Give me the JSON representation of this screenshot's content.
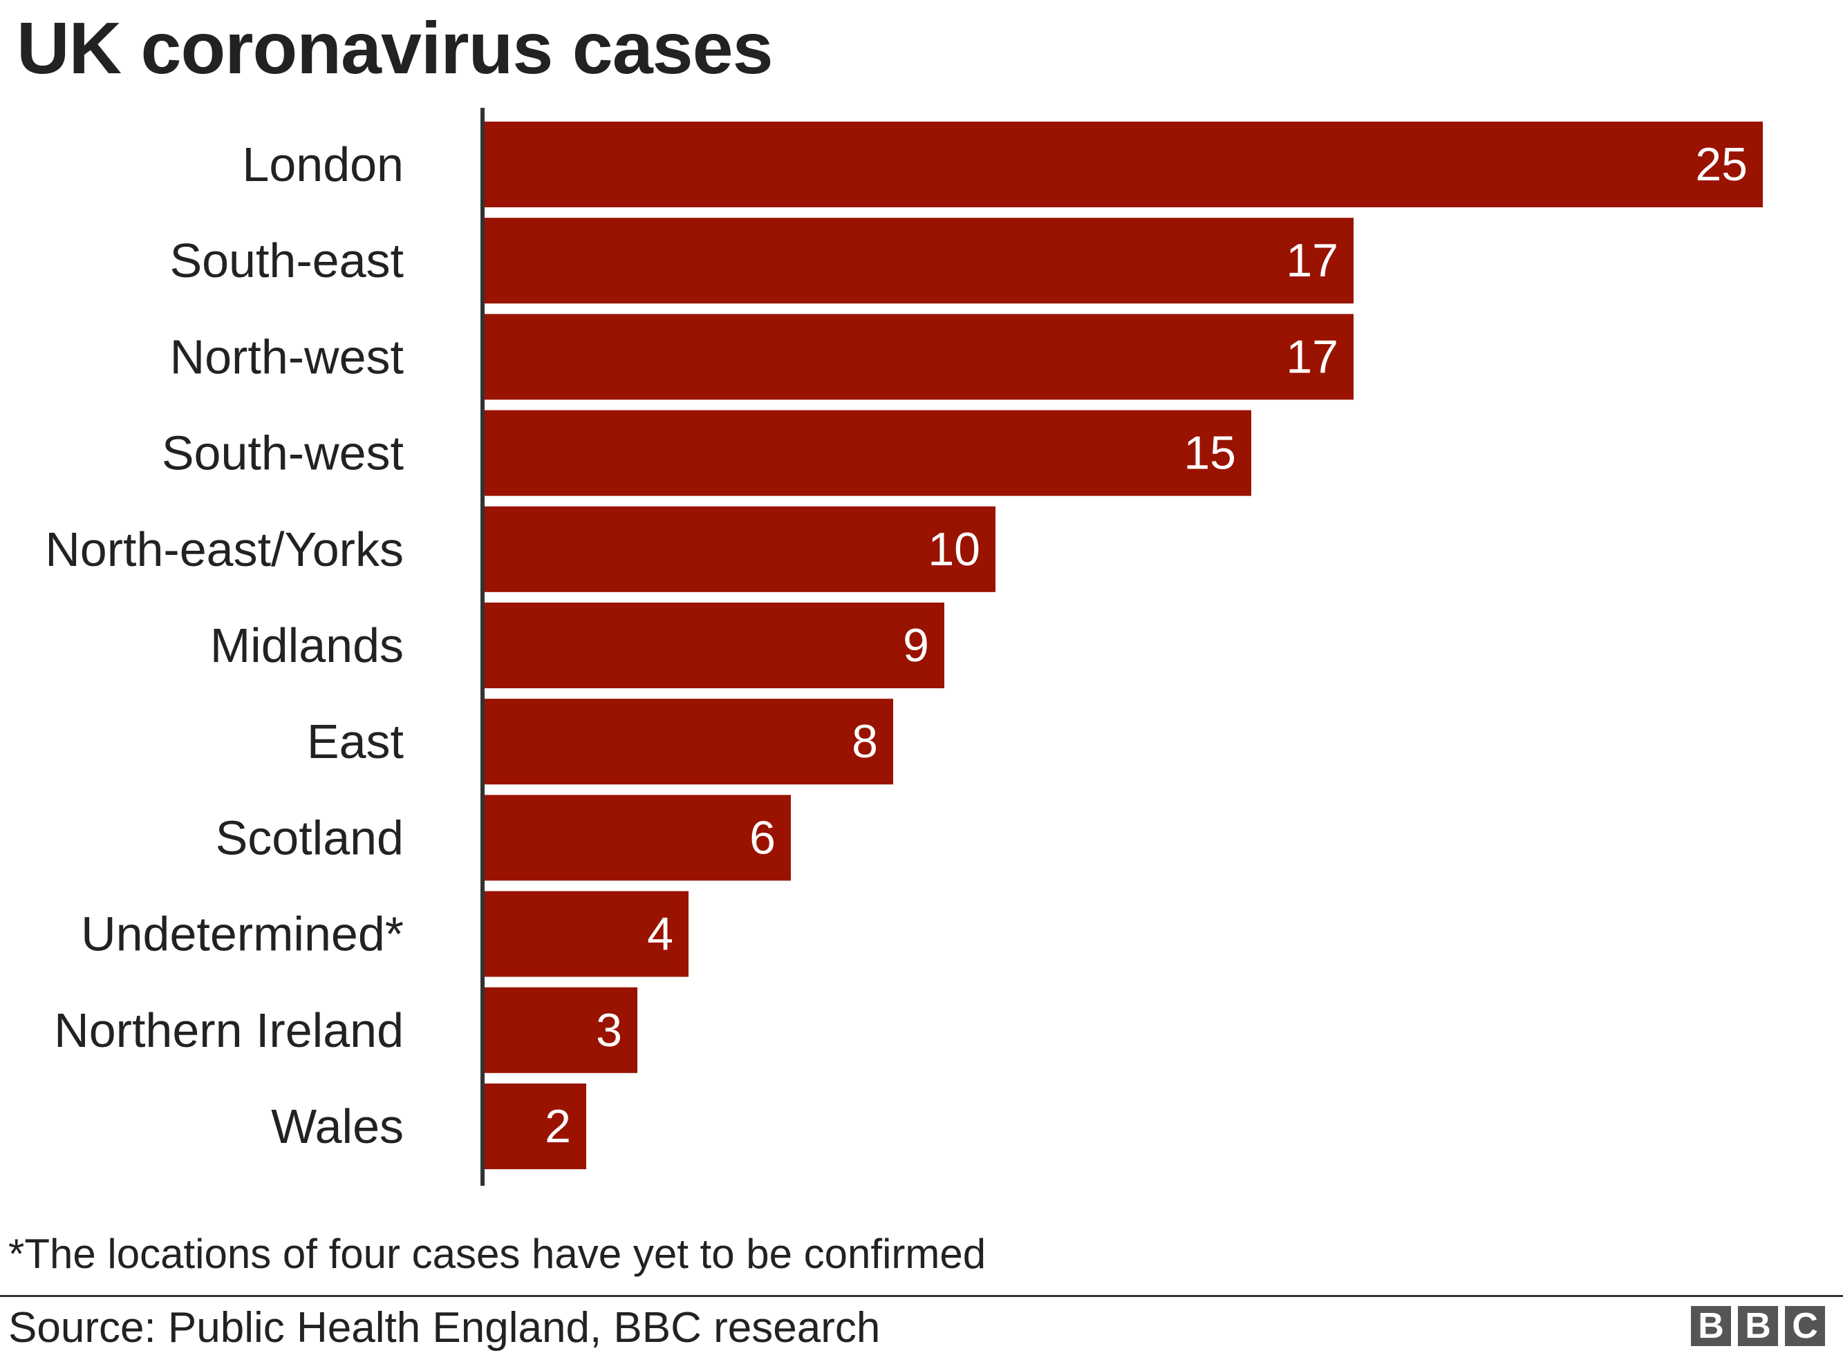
{
  "title": "UK coronavirus cases",
  "footnote": "*The locations of four cases have yet to be confirmed",
  "source": "Source: Public Health England, BBC research",
  "logo": {
    "letters": [
      "B",
      "B",
      "C"
    ],
    "text": "BBC"
  },
  "colors": {
    "bar": "#991300",
    "bar_label": "#ffffff",
    "axis": "#333333",
    "text": "#222222"
  },
  "chart_data": {
    "type": "bar",
    "orientation": "horizontal",
    "title": "UK coronavirus cases",
    "categories": [
      "London",
      "South-east",
      "North-west",
      "South-west",
      "North-east/Yorks",
      "Midlands",
      "East",
      "Scotland",
      "Undetermined*",
      "Northern Ireland",
      "Wales"
    ],
    "values": [
      25,
      17,
      17,
      15,
      10,
      9,
      8,
      6,
      4,
      3,
      2
    ],
    "data_labels": [
      "25",
      "17",
      "17",
      "15",
      "10",
      "9",
      "8",
      "6",
      "4",
      "3",
      "2"
    ],
    "xlim": [
      0,
      25
    ],
    "grid": false,
    "legend": "none"
  }
}
